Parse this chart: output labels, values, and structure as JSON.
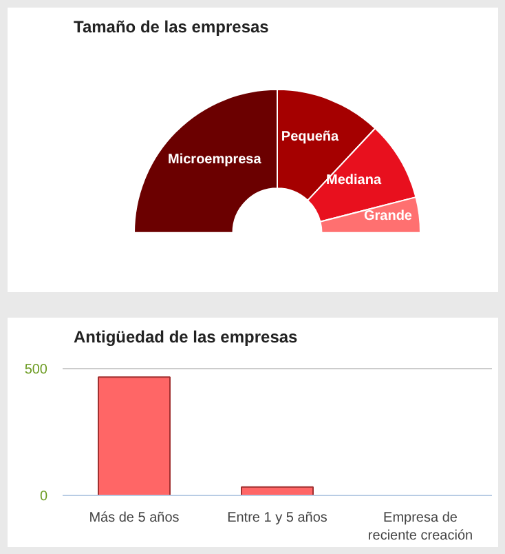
{
  "chart_data": [
    {
      "type": "donut",
      "title": "Tamaño de las empresas",
      "categories": [
        "Microempresa",
        "Pequeña",
        "Mediana",
        "Grande"
      ],
      "values": [
        50,
        24,
        18,
        8
      ],
      "colors": [
        "#6b0000",
        "#a50000",
        "#e8101e",
        "#ff7070"
      ]
    },
    {
      "type": "bar",
      "title": "Antigüedad de las empresas",
      "categories": [
        "Más de 5 años",
        "Entre 1 y 5 años",
        "Empresa de reciente creación"
      ],
      "values": [
        467,
        33,
        0
      ],
      "color": "#ff6666",
      "ylim": [
        0,
        560
      ],
      "yticks": [
        0,
        500
      ],
      "grid": "y"
    }
  ]
}
